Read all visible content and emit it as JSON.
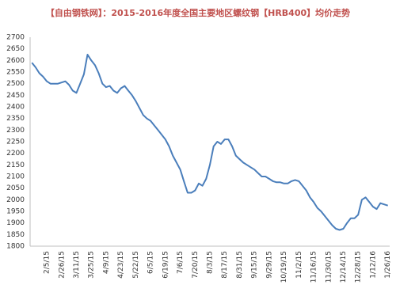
{
  "chart_data": {
    "type": "line",
    "title": "【自由钢铁网】：2015-2016年度全国主要地区螺纹钢【HRB400】均价走势",
    "categories": [
      null,
      null,
      null,
      null,
      "2/5/15",
      null,
      null,
      null,
      "2/26/15",
      null,
      null,
      null,
      "3/11/15",
      null,
      null,
      null,
      "3/25/15",
      null,
      null,
      null,
      "4/9/15",
      null,
      null,
      null,
      "4/23/15",
      null,
      null,
      null,
      "5/22/15",
      null,
      null,
      null,
      "6/5/15",
      null,
      null,
      null,
      "6/19/15",
      null,
      null,
      null,
      "7/6/15",
      null,
      null,
      null,
      "7/20/15",
      null,
      null,
      null,
      "8/3/15",
      null,
      null,
      null,
      "8/17/15",
      null,
      null,
      null,
      "8/31/15",
      null,
      null,
      null,
      "9/15/15",
      null,
      null,
      null,
      "9/29/15",
      null,
      null,
      null,
      "10/19/15",
      null,
      null,
      null,
      "11/2/15",
      null,
      null,
      null,
      "11/16/15",
      null,
      null,
      null,
      "11/30/15",
      null,
      null,
      null,
      "12/14/15",
      null,
      null,
      null,
      "12/28/15",
      null,
      null,
      null,
      "1/12/16",
      null,
      null,
      null,
      "1/26/16"
    ],
    "series": [
      {
        "color": "#4a7ebb",
        "values": [
          2590,
          2570,
          2545,
          2530,
          2510,
          2500,
          2500,
          2500,
          2505,
          2510,
          2495,
          2470,
          2460,
          2500,
          2540,
          2625,
          2600,
          2580,
          2545,
          2500,
          2485,
          2490,
          2470,
          2460,
          2480,
          2490,
          2470,
          2450,
          2425,
          2395,
          2365,
          2350,
          2340,
          2320,
          2300,
          2280,
          2260,
          2230,
          2190,
          2160,
          2130,
          2080,
          2030,
          2030,
          2040,
          2070,
          2060,
          2090,
          2150,
          2230,
          2250,
          2240,
          2260,
          2260,
          2230,
          2190,
          2175,
          2160,
          2150,
          2140,
          2130,
          2115,
          2100,
          2100,
          2090,
          2080,
          2075,
          2075,
          2070,
          2070,
          2080,
          2085,
          2080,
          2060,
          2040,
          2010,
          1990,
          1965,
          1950,
          1930,
          1910,
          1890,
          1875,
          1870,
          1875,
          1900,
          1920,
          1920,
          1935,
          2000,
          2010,
          1990,
          1970,
          1960,
          1985,
          1980,
          1975
        ]
      }
    ],
    "ylim": [
      1800,
      2700
    ],
    "yticks": [
      1800,
      1850,
      1900,
      1950,
      2000,
      2050,
      2100,
      2150,
      2200,
      2250,
      2300,
      2350,
      2400,
      2450,
      2500,
      2550,
      2600,
      2650,
      2700
    ],
    "grid": false
  }
}
